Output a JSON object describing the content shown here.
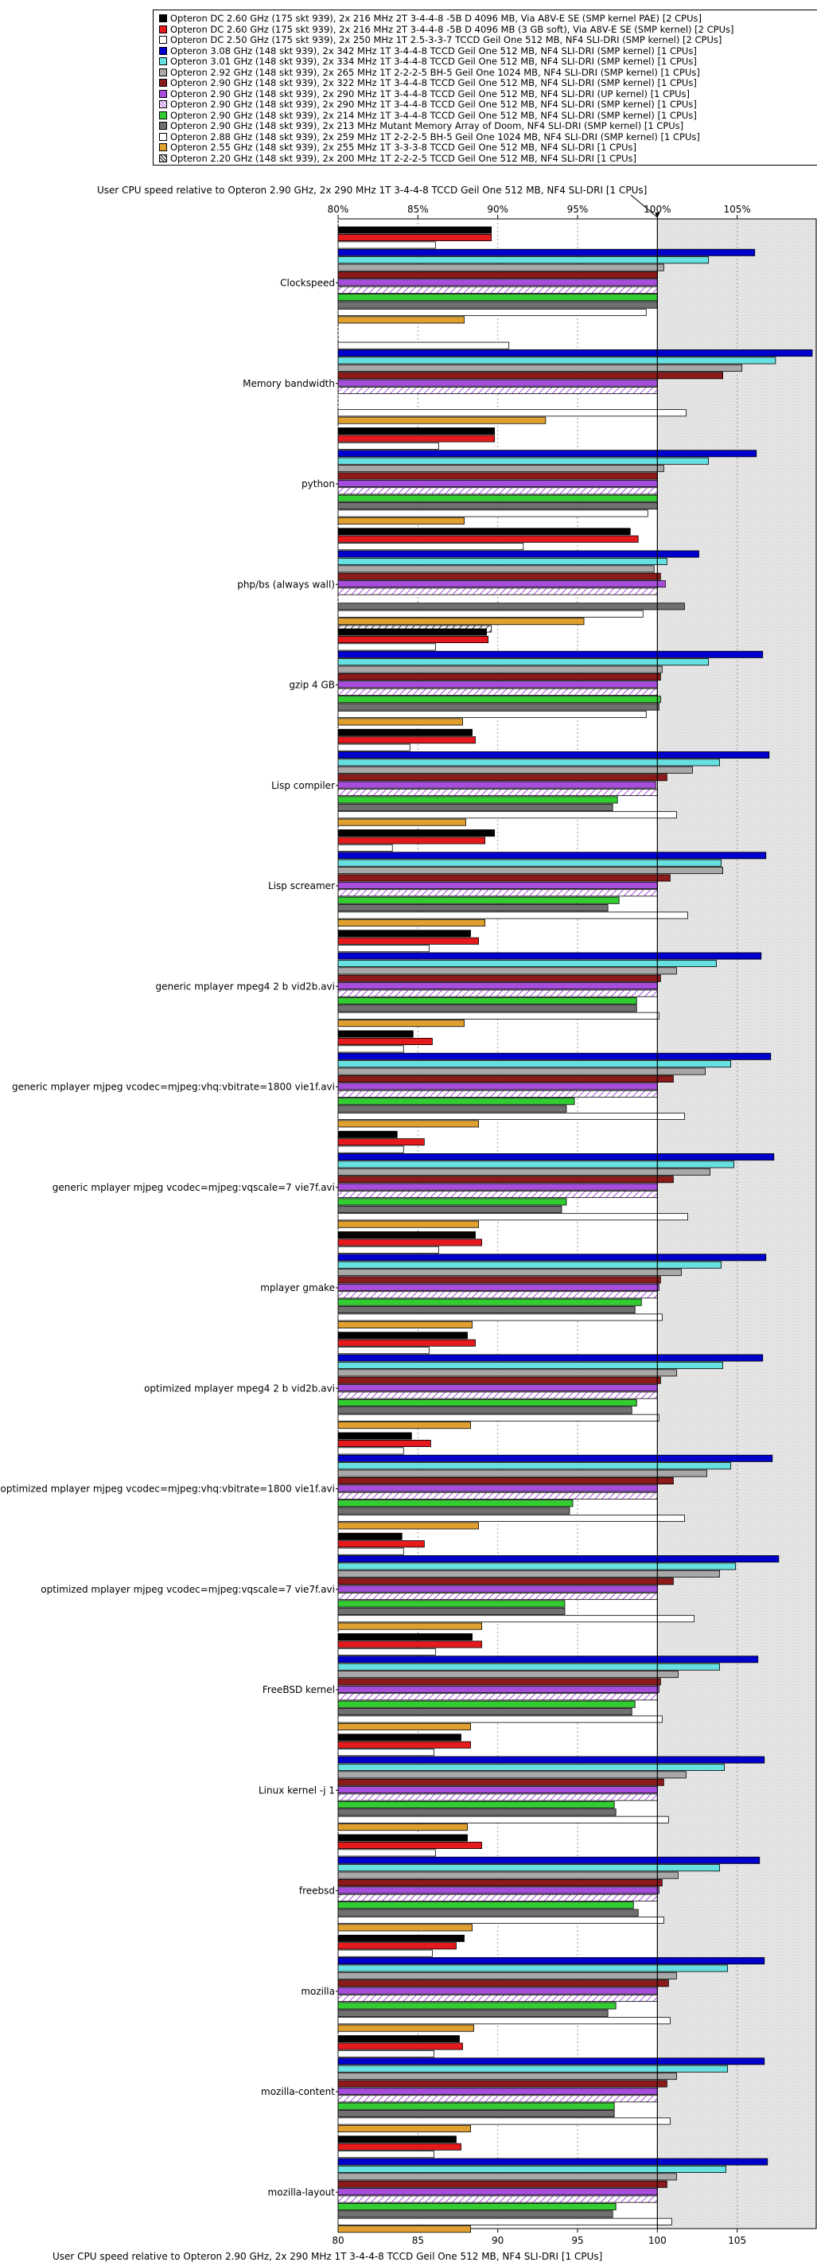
{
  "legend": {
    "entries": [
      {
        "label": "Opteron DC 2.60 GHz (175 skt 939), 2x 216 MHz 2T 3-4-4-8 -5B D 4096 MB, Via A8V-E SE (SMP kernel PAE) [2 CPUs]",
        "color": "#000000"
      },
      {
        "label": "Opteron DC 2.60 GHz (175 skt 939), 2x 216 MHz 2T 3-4-4-8 -5B D 4096 MB (3 GB soft), Via A8V-E SE (SMP kernel) [2 CPUs]",
        "color": "#e41a1c"
      },
      {
        "label": "Opteron DC 2.50 GHz (175 skt 939), 2x 250 MHz 1T 2.5-3-3-7 TCCD Geil One 512 MB, NF4 SLI-DRI (SMP kernel) [2 CPUs]",
        "color": "#ffffff"
      },
      {
        "label": "Opteron 3.08 GHz (148 skt 939), 2x 342 MHz 1T 3-4-4-8 TCCD Geil One 512 MB, NF4 SLI-DRI (SMP kernel) [1 CPUs]",
        "color": "#0000cc"
      },
      {
        "label": "Opteron 3.01 GHz (148 skt 939), 2x 334 MHz 1T 3-4-4-8 TCCD Geil One 512 MB, NF4 SLI-DRI (SMP kernel) [1 CPUs]",
        "color": "#66e0e0"
      },
      {
        "label": "Opteron 2.92 GHz (148 skt 939), 2x 265 MHz 1T 2-2-2-5 BH-5 Geil One 1024 MB, NF4 SLI-DRI (SMP kernel) [1 CPUs]",
        "color": "#a8a8a8"
      },
      {
        "label": "Opteron 2.90 GHz (148 skt 939), 2x 322 MHz 1T 3-4-4-8 TCCD Geil One 512 MB, NF4 SLI-DRI (SMP kernel) [1 CPUs]",
        "color": "#8b1a1a"
      },
      {
        "label": "Opteron 2.90 GHz (148 skt 939), 2x 290 MHz 1T 3-4-4-8 TCCD Geil One 512 MB, NF4 SLI-DRI (UP kernel) [1 CPUs]",
        "color": "#a64ddb"
      },
      {
        "label": "Opteron 2.90 GHz (148 skt 939), 2x 290 MHz 1T 3-4-4-8 TCCD Geil One 512 MB, NF4 SLI-DRI (SMP kernel) [1 CPUs]",
        "color": "#ffffff"
      },
      {
        "label": "Opteron 2.90 GHz (148 skt 939), 2x 214 MHz 1T 3-4-4-8 TCCD Geil One 512 MB, NF4 SLI-DRI (SMP kernel) [1 CPUs]",
        "color": "#33cc33"
      },
      {
        "label": "Opteron 2.90 GHz (148 skt 939), 2x 213 MHz Mutant Memory Array of Doom, NF4 SLI-DRI (SMP kernel) [1 CPUs]",
        "color": "#707070"
      },
      {
        "label": "Opteron 2.88 GHz (148 skt 939), 2x 259 MHz 1T 2-2-2-5 BH-5 Geil One 1024 MB, NF4 SLI-DRI (SMP kernel) [1 CPUs]",
        "color": "#ffffff"
      },
      {
        "label": "Opteron 2.55 GHz (148 skt 939), 2x 255 MHz 1T 3-3-3-8 TCCD Geil One 512 MB, NF4 SLI-DRI [1 CPUs]",
        "color": "#e0a030"
      },
      {
        "label": "Opteron 2.20 GHz (148 skt 939), 2x 200 MHz 1T 2-2-2-5 TCCD Geil One 512 MB, NF4 SLI-DRI [1 CPUs]",
        "color": "#ffffff"
      }
    ]
  },
  "axis": {
    "top_title": "User CPU speed relative to Opteron 2.90 GHz, 2x 290 MHz 1T 3-4-4-8 TCCD Geil One 512 MB, NF4 SLI-DRI [1 CPUs]",
    "bottom_title": "User CPU speed relative to Opteron 2.90 GHz, 2x 290 MHz 1T 3-4-4-8 TCCD Geil One 512 MB, NF4 SLI-DRI [1 CPUs]",
    "top_ticks": [
      "80%",
      "85%",
      "90%",
      "95%",
      "100%",
      "105%"
    ],
    "bottom_ticks": [
      "80",
      "85",
      "90",
      "95",
      "100",
      "105"
    ]
  },
  "chart_data": {
    "type": "bar",
    "orientation": "horizontal",
    "xlim": [
      80,
      110
    ],
    "reference_value": 100,
    "grid": true,
    "legend_position": "top",
    "categories": [
      "Clockspeed",
      "Memory bandwidth",
      "python",
      "php/bs (always wall)",
      "gzip 4 GB",
      "Lisp compiler",
      "Lisp screamer",
      "generic mplayer mpeg4 2 b vid2b.avi",
      "generic mplayer mjpeg vcodec=mjpeg:vhq:vbitrate=1800 vie1f.avi",
      "generic mplayer mjpeg vcodec=mjpeg:vqscale=7 vie7f.avi",
      "mplayer gmake",
      "optimized mplayer mpeg4 2 b vid2b.avi",
      "optimized mplayer mjpeg vcodec=mjpeg:vhq:vbitrate=1800 vie1f.avi",
      "optimized mplayer mjpeg vcodec=mjpeg:vqscale=7 vie7f.avi",
      "FreeBSD kernel",
      "Linux kernel -j 1",
      "freebsd",
      "mozilla",
      "mozilla-content",
      "mozilla-layout"
    ],
    "series": [
      {
        "name": "Opteron DC 2.60 GHz (175 skt 939), 2x 216 MHz 2T 3-4-4-8 -5B D 4096 MB, Via A8V-E SE (SMP kernel PAE) [2 CPUs]",
        "values": [
          89.6,
          null,
          89.8,
          98.3,
          89.3,
          88.4,
          89.8,
          88.3,
          84.7,
          83.7,
          88.6,
          88.1,
          84.6,
          84.0,
          88.4,
          87.7,
          88.1,
          87.9,
          87.6,
          87.4
        ]
      },
      {
        "name": "Opteron DC 2.60 GHz (175 skt 939), 2x 216 MHz 2T 3-4-4-8 -5B D 4096 MB (3 GB soft), Via A8V-E SE (SMP kernel) [2 CPUs]",
        "values": [
          89.6,
          null,
          89.8,
          98.8,
          89.4,
          88.6,
          89.2,
          88.8,
          85.9,
          85.4,
          89.0,
          88.6,
          85.8,
          85.4,
          89.0,
          88.3,
          89.0,
          87.4,
          87.8,
          87.7
        ]
      },
      {
        "name": "Opteron DC 2.50 GHz (175 skt 939), 2x 250 MHz 1T 2.5-3-3-7 TCCD Geil One 512 MB, NF4 SLI-DRI (SMP kernel) [2 CPUs]",
        "values": [
          86.1,
          90.7,
          86.3,
          91.6,
          86.1,
          84.5,
          83.4,
          85.7,
          84.1,
          84.1,
          86.3,
          85.7,
          84.1,
          84.1,
          86.1,
          86.0,
          86.1,
          85.9,
          86.0,
          86.0
        ]
      },
      {
        "name": "Opteron 3.08 GHz (148 skt 939), 2x 342 MHz 1T 3-4-4-8 TCCD Geil One 512 MB, NF4 SLI-DRI (SMP kernel) [1 CPUs]",
        "values": [
          106.1,
          109.7,
          106.2,
          102.6,
          106.6,
          107.0,
          106.8,
          106.5,
          107.1,
          107.3,
          106.8,
          106.6,
          107.2,
          107.6,
          106.3,
          106.7,
          106.4,
          106.7,
          106.7,
          106.9
        ]
      },
      {
        "name": "Opteron 3.01 GHz (148 skt 939), 2x 334 MHz 1T 3-4-4-8 TCCD Geil One 512 MB, NF4 SLI-DRI (SMP kernel) [1 CPUs]",
        "values": [
          103.2,
          107.4,
          103.2,
          100.6,
          103.2,
          103.9,
          104.0,
          103.7,
          104.6,
          104.8,
          104.0,
          104.1,
          104.6,
          104.9,
          103.9,
          104.2,
          103.9,
          104.4,
          104.4,
          104.3
        ]
      },
      {
        "name": "Opteron 2.92 GHz (148 skt 939), 2x 265 MHz 1T 2-2-2-5 BH-5 Geil One 1024 MB, NF4 SLI-DRI (SMP kernel) [1 CPUs]",
        "values": [
          100.4,
          105.3,
          100.4,
          99.8,
          100.3,
          102.2,
          104.1,
          101.2,
          103.0,
          103.3,
          101.5,
          101.2,
          103.1,
          103.9,
          101.3,
          101.8,
          101.3,
          101.2,
          101.2,
          101.2
        ]
      },
      {
        "name": "Opteron 2.90 GHz (148 skt 939), 2x 322 MHz 1T 3-4-4-8 TCCD Geil One 512 MB, NF4 SLI-DRI (SMP kernel) [1 CPUs]",
        "values": [
          100.0,
          104.1,
          100.0,
          100.2,
          100.2,
          100.6,
          100.8,
          100.2,
          101.0,
          101.0,
          100.2,
          100.2,
          101.0,
          101.0,
          100.2,
          100.4,
          100.3,
          100.7,
          100.6,
          100.6
        ]
      },
      {
        "name": "Opteron 2.90 GHz (148 skt 939), 2x 290 MHz 1T 3-4-4-8 TCCD Geil One 512 MB, NF4 SLI-DRI (UP kernel) [1 CPUs]",
        "values": [
          100.0,
          100.0,
          100.0,
          100.5,
          100.0,
          99.9,
          100.0,
          100.0,
          100.0,
          100.0,
          100.1,
          100.0,
          100.0,
          100.0,
          100.1,
          100.0,
          100.1,
          100.0,
          100.0,
          100.0
        ]
      },
      {
        "name": "Opteron 2.90 GHz (148 skt 939), 2x 290 MHz 1T 3-4-4-8 TCCD Geil One 512 MB, NF4 SLI-DRI (SMP kernel) [1 CPUs]",
        "values": [
          100.0,
          100.0,
          100.0,
          100.0,
          100.0,
          100.0,
          100.0,
          100.0,
          100.0,
          100.0,
          100.0,
          100.0,
          100.0,
          100.0,
          100.0,
          100.0,
          100.0,
          100.0,
          100.0,
          100.0
        ]
      },
      {
        "name": "Opteron 2.90 GHz (148 skt 939), 2x 214 MHz 1T 3-4-4-8 TCCD Geil One 512 MB, NF4 SLI-DRI (SMP kernel) [1 CPUs]",
        "values": [
          100.0,
          null,
          100.0,
          null,
          100.2,
          97.5,
          97.6,
          98.7,
          94.8,
          94.3,
          99.0,
          98.7,
          94.7,
          94.2,
          98.6,
          97.3,
          98.5,
          97.4,
          97.3,
          97.4
        ]
      },
      {
        "name": "Opteron 2.90 GHz (148 skt 939), 2x 213 MHz Mutant Memory Array of Doom, NF4 SLI-DRI (SMP kernel) [1 CPUs]",
        "values": [
          100.0,
          null,
          100.0,
          101.7,
          100.1,
          97.2,
          96.9,
          98.7,
          94.3,
          94.0,
          98.6,
          98.4,
          94.5,
          94.2,
          98.4,
          97.4,
          98.8,
          96.9,
          97.3,
          97.2
        ]
      },
      {
        "name": "Opteron 2.88 GHz (148 skt 939), 2x 259 MHz 1T 2-2-2-5 BH-5 Geil One 1024 MB, NF4 SLI-DRI (SMP kernel) [1 CPUs]",
        "values": [
          99.3,
          101.8,
          99.4,
          99.1,
          99.3,
          101.2,
          101.9,
          100.1,
          101.7,
          101.9,
          100.3,
          100.1,
          101.7,
          102.3,
          100.3,
          100.7,
          100.4,
          100.8,
          100.8,
          100.9
        ]
      },
      {
        "name": "Opteron 2.55 GHz (148 skt 939), 2x 255 MHz 1T 3-3-3-8 TCCD Geil One 512 MB, NF4 SLI-DRI [1 CPUs]",
        "values": [
          87.9,
          93.0,
          87.9,
          95.4,
          87.8,
          88.0,
          89.2,
          87.9,
          88.8,
          88.8,
          88.4,
          88.3,
          88.8,
          89.0,
          88.3,
          88.1,
          88.4,
          88.5,
          88.3,
          88.3
        ]
      },
      {
        "name": "Opteron 2.20 GHz (148 skt 939), 2x 200 MHz 1T 2-2-2-5 TCCD Geil One 512 MB, NF4 SLI-DRI [1 CPUs]",
        "values": [
          null,
          null,
          null,
          89.6,
          null,
          null,
          null,
          null,
          null,
          null,
          null,
          null,
          null,
          null,
          null,
          null,
          null,
          null,
          null,
          null
        ]
      }
    ]
  }
}
